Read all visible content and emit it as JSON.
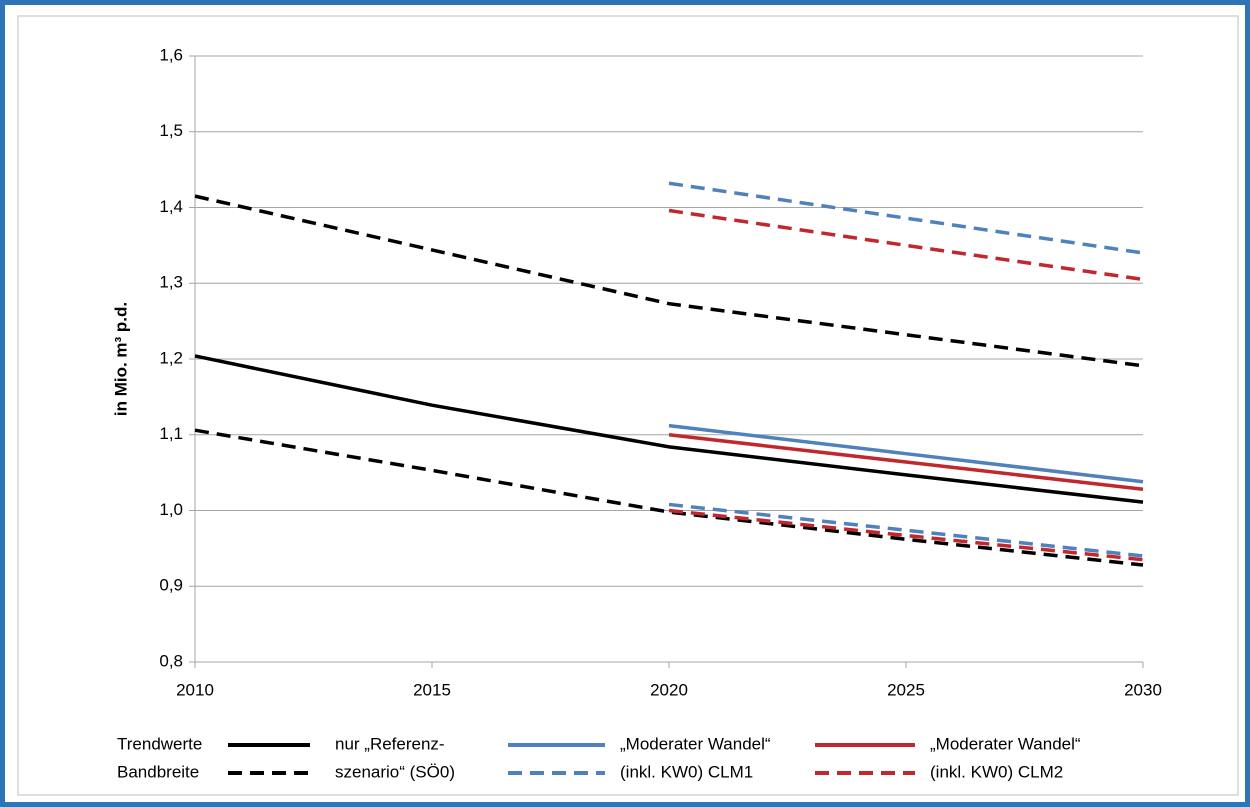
{
  "chart_data": {
    "type": "line",
    "y_label": "in Mio. m³ p.d.",
    "x": [
      2010,
      2015,
      2020,
      2025,
      2030
    ],
    "xlim": [
      2010,
      2030
    ],
    "xticks": [
      2010,
      2015,
      2020,
      2025,
      2030
    ],
    "ylim": [
      0.8,
      1.6
    ],
    "yticks": [
      {
        "value": 0.8,
        "label": "0,8"
      },
      {
        "value": 0.9,
        "label": "0,9"
      },
      {
        "value": 1.0,
        "label": "1,0"
      },
      {
        "value": 1.1,
        "label": "1,1"
      },
      {
        "value": 1.2,
        "label": "1,2"
      },
      {
        "value": 1.3,
        "label": "1,3"
      },
      {
        "value": 1.4,
        "label": "1,4"
      },
      {
        "value": 1.5,
        "label": "1,5"
      },
      {
        "value": 1.6,
        "label": "1,6"
      }
    ],
    "grid": true,
    "legend_rows": [
      "Trendwerte",
      "Bandbreite"
    ],
    "series": [
      {
        "name": "nur „Referenz-",
        "color": "#000000",
        "dashed": false,
        "values": [
          1.204,
          1.139,
          1.084,
          1.047,
          1.011
        ]
      },
      {
        "name": "szenario“ (SÖ0)",
        "color": "#000000",
        "dashed": true,
        "values": [
          1.415,
          1.344,
          1.273,
          1.232,
          1.191
        ],
        "lower_values": [
          1.106,
          1.053,
          0.998,
          0.962,
          0.928
        ]
      },
      {
        "name": "„Moderater Wandel“",
        "color": "#4f81bd",
        "dashed": false,
        "values": [
          null,
          null,
          1.112,
          1.075,
          1.038
        ]
      },
      {
        "name": "(inkl. KW0) CLM1",
        "color": "#4f81bd",
        "dashed": true,
        "values": [
          null,
          null,
          1.432,
          1.386,
          1.34
        ],
        "lower_values": [
          null,
          null,
          1.008,
          0.974,
          0.94
        ]
      },
      {
        "name": "„Moderater Wandel“",
        "color": "#c0282d",
        "dashed": false,
        "values": [
          null,
          null,
          1.1,
          1.064,
          1.028
        ]
      },
      {
        "name": "(inkl. KW0) CLM2",
        "color": "#c0282d",
        "dashed": true,
        "values": [
          null,
          null,
          1.396,
          1.35,
          1.305
        ],
        "lower_values": [
          null,
          null,
          1.0,
          0.967,
          0.935
        ]
      }
    ]
  }
}
